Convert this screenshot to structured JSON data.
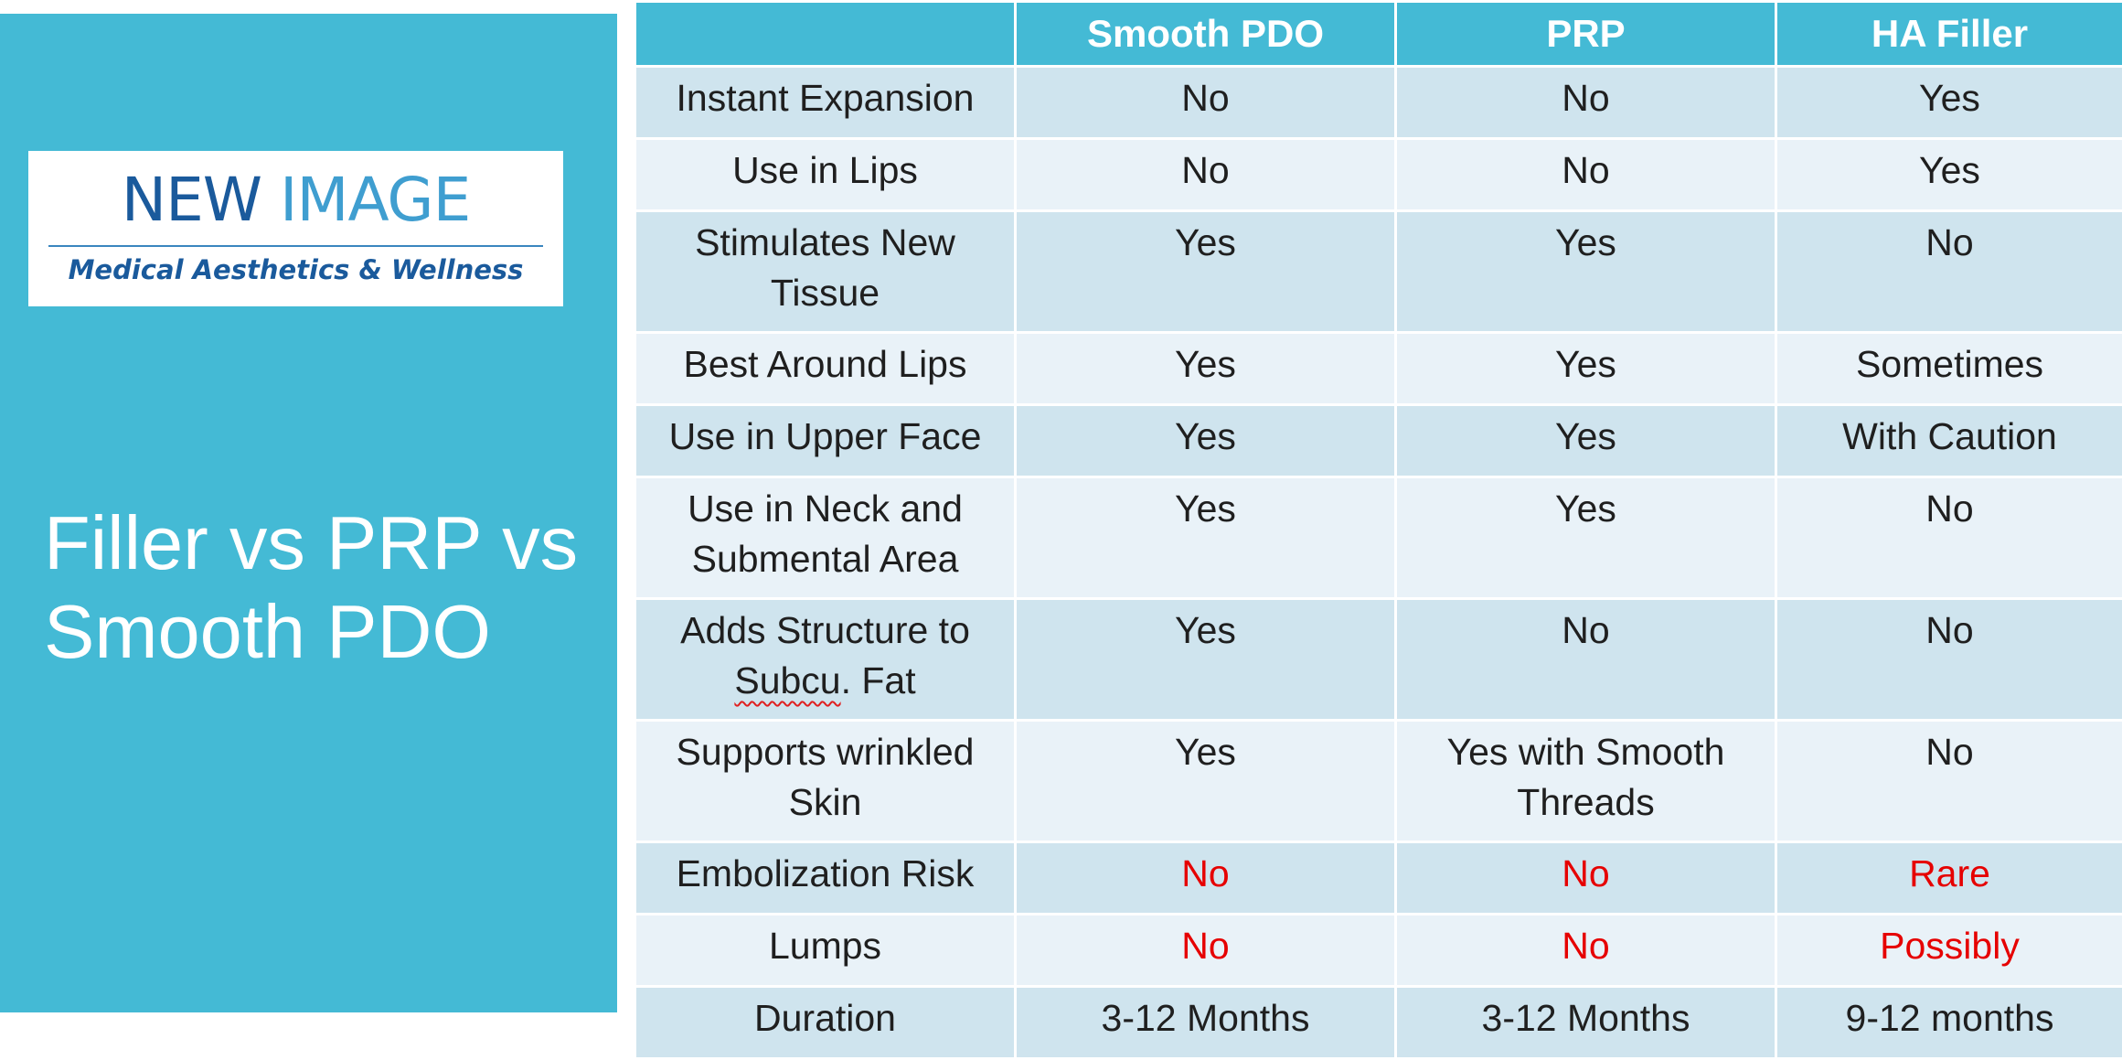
{
  "logo": {
    "word1": "NEW",
    "word2": "IMAGE",
    "tagline": "Medical Aesthetics & Wellness"
  },
  "title": {
    "line1": "Filler vs PRP vs",
    "line2": "Smooth PDO"
  },
  "table": {
    "columns": [
      "",
      "Smooth PDO",
      "PRP",
      "HA Filler"
    ],
    "rows": [
      {
        "feature": "Instant Expansion",
        "values": [
          "No",
          "No",
          "Yes"
        ]
      },
      {
        "feature": "Use in Lips",
        "values": [
          "No",
          "No",
          "Yes"
        ]
      },
      {
        "feature": "Stimulates New Tissue",
        "values": [
          "Yes",
          "Yes",
          "No"
        ]
      },
      {
        "feature": "Best Around Lips",
        "values": [
          "Yes",
          "Yes",
          "Sometimes"
        ]
      },
      {
        "feature": "Use in Upper Face",
        "values": [
          "Yes",
          "Yes",
          "With Caution"
        ]
      },
      {
        "feature": "Use in Neck and Submental Area",
        "values": [
          "Yes",
          "Yes",
          "No"
        ]
      },
      {
        "feature_pre": "Adds Structure to",
        "feature_underlined": "Subcu",
        "feature_post": ". Fat",
        "values": [
          "Yes",
          "No",
          "No"
        ]
      },
      {
        "feature": "Supports wrinkled Skin",
        "values": [
          "Yes",
          "Yes with Smooth Threads",
          "No"
        ]
      },
      {
        "feature": "Embolization Risk",
        "values": [
          "No",
          "No",
          "Rare"
        ]
      },
      {
        "feature": "Lumps",
        "values": [
          "No",
          "No",
          "Possibly"
        ]
      },
      {
        "feature": "Duration",
        "values": [
          "3-12 Months",
          "3-12 Months",
          "9-12 months"
        ]
      }
    ]
  },
  "colors": {
    "accent": "#44bad5",
    "row_dark": "#cfe4ee",
    "row_light": "#e9f2f8",
    "warning_text": "#e60000",
    "logo_dark": "#1a5a9c",
    "logo_light": "#3f9ed0"
  }
}
